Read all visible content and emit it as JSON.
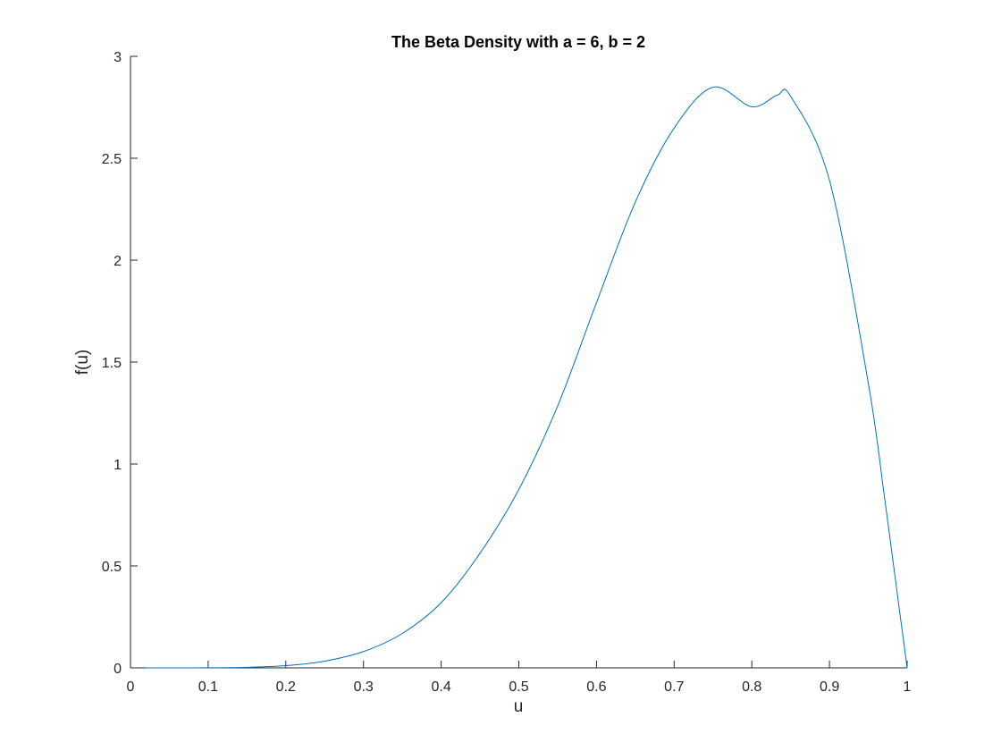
{
  "chart_data": {
    "type": "line",
    "title": "The Beta Density with a = 6, b = 2",
    "xlabel": "u",
    "ylabel": "f(u)",
    "xlim": [
      0,
      1
    ],
    "ylim": [
      0,
      3
    ],
    "grid": false,
    "x_ticks": [
      "0",
      "0.1",
      "0.2",
      "0.3",
      "0.4",
      "0.5",
      "0.6",
      "0.7",
      "0.8",
      "0.9",
      "1"
    ],
    "y_ticks": [
      "0",
      "0.5",
      "1",
      "1.5",
      "2",
      "2.5",
      "3"
    ],
    "colors": {
      "line": "#0072bd",
      "axes": "#262626"
    },
    "series": [
      {
        "x": [
          0.02,
          0.05,
          0.1,
          0.15,
          0.2,
          0.25,
          0.3,
          0.35,
          0.4,
          0.45,
          0.5,
          0.55,
          0.6,
          0.65,
          0.7,
          0.75,
          0.8,
          0.833,
          0.85,
          0.9,
          0.95,
          0.97,
          0.99,
          1.0
        ],
        "y": [
          0.0,
          0.0,
          0.0003,
          0.0027,
          0.0108,
          0.033,
          0.08,
          0.1689,
          0.3195,
          0.5623,
          0.875,
          1.2846,
          1.7917,
          2.2849,
          2.6483,
          2.8485,
          2.7525,
          2.8103,
          2.8035,
          2.3918,
          1.3964,
          0.8603,
          0.2852,
          0.0
        ]
      }
    ]
  }
}
